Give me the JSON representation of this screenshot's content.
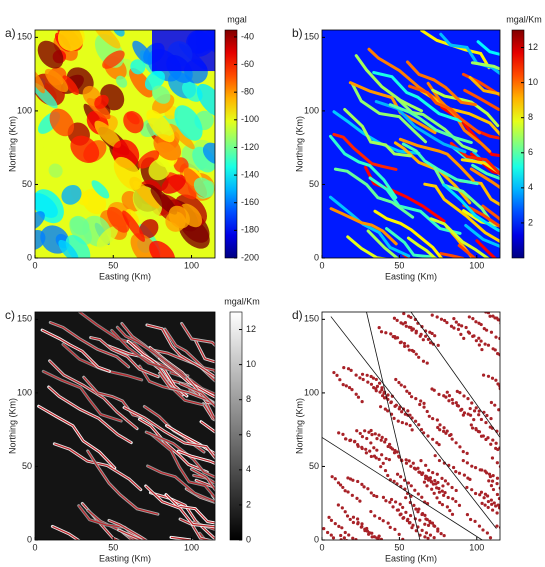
{
  "chart_data": [
    {
      "type": "heatmap",
      "panel_label": "a)",
      "xlabel": "Easting (Km)",
      "ylabel": "Northing (Km)",
      "xlim": [
        0,
        115
      ],
      "xticks": [
        0,
        50,
        100
      ],
      "ylim": [
        0,
        155
      ],
      "yticks": [
        0,
        50,
        100,
        150
      ],
      "colormap": "jet",
      "colorbar": {
        "label": "mgal",
        "lim": [
          -200,
          -35
        ],
        "ticks": [
          -40,
          -60,
          -80,
          -100,
          -120,
          -140,
          -160,
          -180,
          -200
        ]
      }
    },
    {
      "type": "heatmap",
      "panel_label": "b)",
      "xlabel": "Easting (Km)",
      "ylabel": "Northing (Km)",
      "xlim": [
        0,
        115
      ],
      "xticks": [
        0,
        50,
        100
      ],
      "ylim": [
        0,
        155
      ],
      "yticks": [
        0,
        50,
        100,
        150
      ],
      "colormap": "jet",
      "colorbar": {
        "label": "mgal/Km",
        "lim": [
          0,
          13
        ],
        "ticks": [
          2,
          4,
          6,
          8,
          10,
          12
        ]
      }
    },
    {
      "type": "heatmap",
      "panel_label": "c)",
      "xlabel": "Easting (Km)",
      "ylabel": "Northing (Km)",
      "xlim": [
        0,
        115
      ],
      "xticks": [
        0,
        50,
        100
      ],
      "ylim": [
        0,
        155
      ],
      "yticks": [
        0,
        50,
        100,
        150
      ],
      "colormap": "gray",
      "colorbar": {
        "label": "mgal/Km",
        "lim": [
          0,
          13
        ],
        "ticks": [
          0,
          2,
          4,
          6,
          8,
          10,
          12
        ]
      }
    },
    {
      "type": "map",
      "panel_label": "d)",
      "xlabel": "Easting (Km)",
      "ylabel": "Northing (Km)",
      "xlim": [
        0,
        115
      ],
      "xticks": [
        0,
        50,
        100
      ],
      "ylim": [
        0,
        155
      ],
      "yticks": [
        0,
        50,
        100,
        150
      ]
    }
  ]
}
